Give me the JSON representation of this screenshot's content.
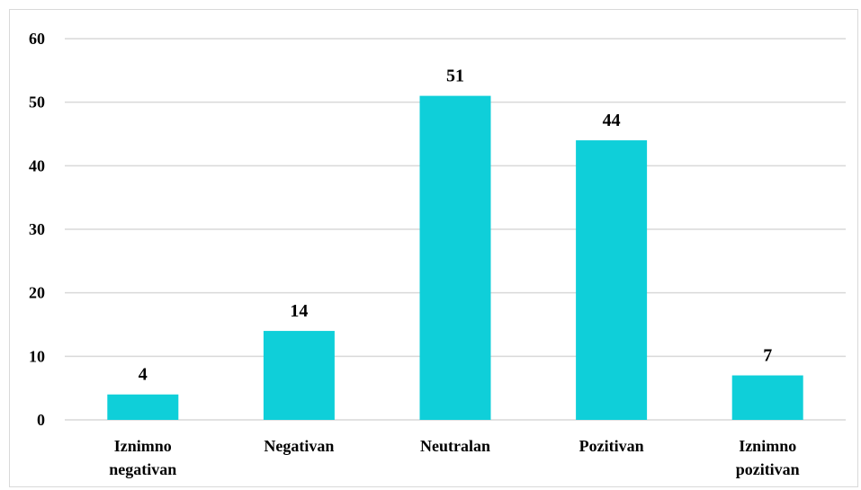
{
  "chart_data": {
    "type": "bar",
    "categories": [
      [
        "Iznimno",
        "negativan"
      ],
      [
        "Negativan"
      ],
      [
        "Neutralan"
      ],
      [
        "Pozitivan"
      ],
      [
        "Iznimno",
        "pozitivan"
      ]
    ],
    "values": [
      4,
      14,
      51,
      44,
      7
    ],
    "data_labels": [
      "4",
      "14",
      "51",
      "44",
      "7"
    ],
    "yticks": [
      0,
      10,
      20,
      30,
      40,
      50,
      60
    ],
    "ylim": [
      0,
      60
    ],
    "title": "",
    "xlabel": "",
    "ylabel": "",
    "grid": true,
    "bar_color": "#0fcfd9",
    "grid_color": "#d9d9d9"
  }
}
